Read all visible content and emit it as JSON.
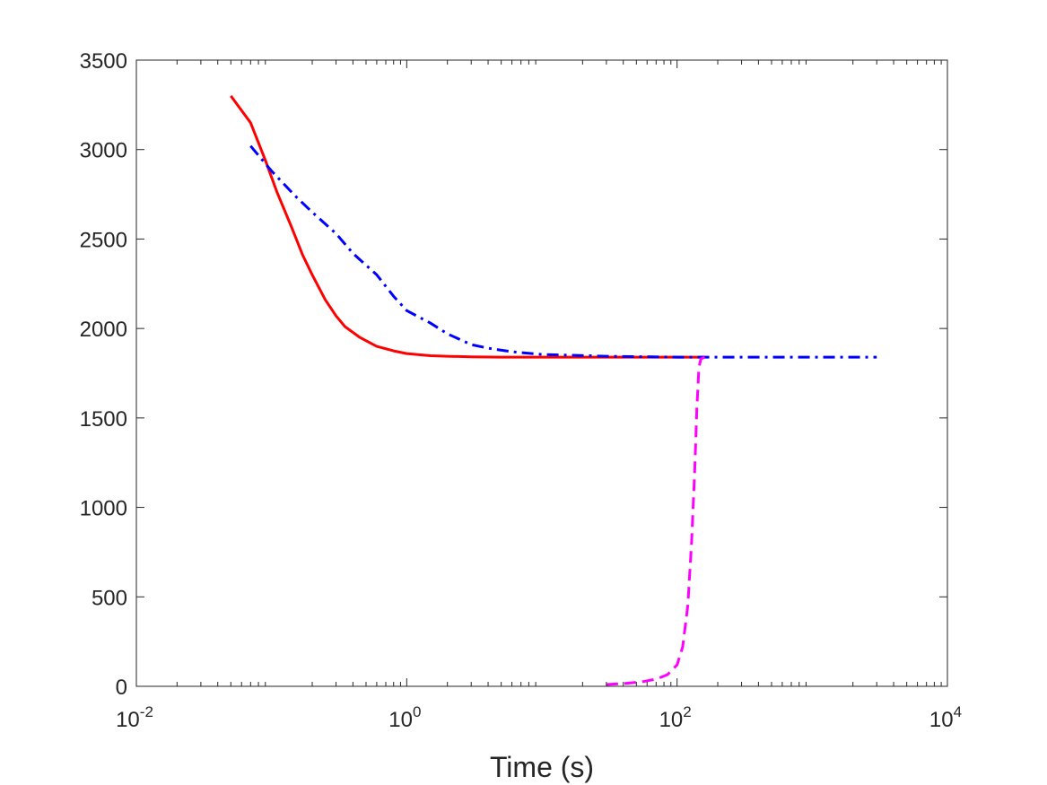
{
  "chart_data": {
    "type": "line",
    "title": "",
    "xlabel": "Time (s)",
    "ylabel": "",
    "xscale": "log",
    "xlim": [
      0.01,
      10000
    ],
    "ylim": [
      0,
      3500
    ],
    "grid": false,
    "x_ticks": [
      {
        "base": "10",
        "exp": "-2",
        "value": 0.01
      },
      {
        "base": "10",
        "exp": "0",
        "value": 1
      },
      {
        "base": "10",
        "exp": "2",
        "value": 100
      },
      {
        "base": "10",
        "exp": "4",
        "value": 10000
      }
    ],
    "y_ticks": [
      "0",
      "500",
      "1000",
      "1500",
      "2000",
      "2500",
      "3000",
      "3500"
    ],
    "series": [
      {
        "color": "#ff0000",
        "style": "solid",
        "x": [
          0.05,
          0.07,
          0.09,
          0.11,
          0.14,
          0.17,
          0.2,
          0.25,
          0.3,
          0.35,
          0.45,
          0.6,
          0.8,
          1.0,
          1.5,
          2,
          3,
          5,
          10,
          30,
          100,
          160
        ],
        "y": [
          3300,
          3150,
          2940,
          2760,
          2570,
          2410,
          2300,
          2160,
          2070,
          2010,
          1950,
          1900,
          1875,
          1860,
          1848,
          1845,
          1842,
          1840,
          1840,
          1840,
          1840,
          1840
        ]
      },
      {
        "color": "#0000ff",
        "style": "dashdot",
        "x": [
          0.07,
          0.1,
          0.15,
          0.2,
          0.3,
          0.4,
          0.6,
          0.8,
          1.0,
          1.5,
          2,
          3,
          4,
          6,
          10,
          30,
          100,
          300,
          1000,
          3000
        ],
        "y": [
          3020,
          2880,
          2740,
          2650,
          2530,
          2420,
          2300,
          2180,
          2100,
          2030,
          1970,
          1910,
          1890,
          1870,
          1855,
          1845,
          1840,
          1840,
          1840,
          1840
        ]
      },
      {
        "color": "#ff00ff",
        "style": "dashed",
        "x": [
          30,
          40,
          55,
          70,
          85,
          100,
          110,
          120,
          128,
          135,
          140,
          145,
          150,
          160
        ],
        "y": [
          10,
          15,
          25,
          40,
          65,
          120,
          220,
          450,
          800,
          1200,
          1550,
          1780,
          1830,
          1840
        ]
      }
    ]
  }
}
